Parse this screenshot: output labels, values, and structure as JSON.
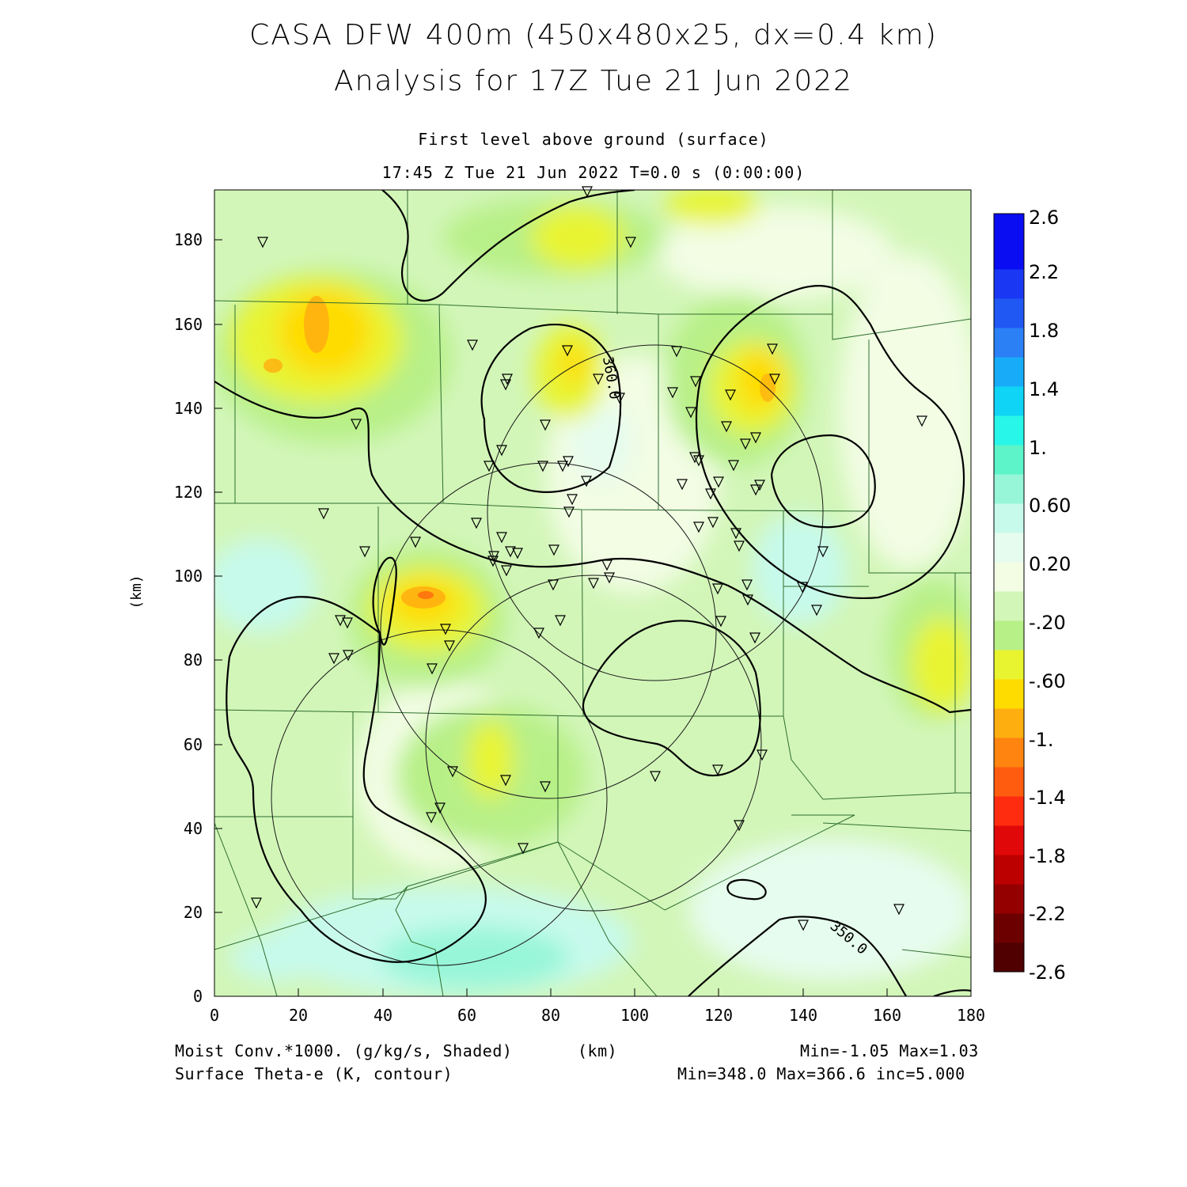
{
  "header": {
    "title_line1": "CASA DFW 400m (450x480x25, dx=0.4 km)",
    "title_line2": "Analysis for 17Z Tue 21 Jun 2022",
    "level": "First level above ground (surface)",
    "valid_time": "17:45 Z Tue 21 Jun 2022   T=0.0 s (0:00:00)"
  },
  "axes": {
    "x_label": "(km)",
    "y_label": "(km)",
    "x_ticks": [
      "0",
      "20",
      "40",
      "60",
      "80",
      "100",
      "120",
      "140",
      "160",
      "180"
    ],
    "y_ticks": [
      "0",
      "20",
      "40",
      "60",
      "80",
      "100",
      "120",
      "140",
      "160",
      "180"
    ],
    "x_range": [
      0,
      180
    ],
    "y_range": [
      0,
      192
    ]
  },
  "colorbar": {
    "labels": [
      "2.6",
      "2.2",
      "1.8",
      "1.4",
      "1.",
      "0.60",
      "0.20",
      "-.20",
      "-.60",
      "-1.",
      "-1.4",
      "-1.8",
      "-2.2",
      "-2.6"
    ],
    "colors": [
      "#0a0cf2",
      "#1a38f4",
      "#2058f4",
      "#2c80f6",
      "#18acf8",
      "#10d4f6",
      "#28f6e8",
      "#5cf4c8",
      "#98f6d8",
      "#c8faec",
      "#e6fcee",
      "#f2fde4",
      "#d2f6b8",
      "#b8f088",
      "#e8f430",
      "#ffdc00",
      "#ffae10",
      "#ff8410",
      "#ff5c10",
      "#ff2c10",
      "#e00808",
      "#bc0000",
      "#940000",
      "#6c0000",
      "#500000"
    ]
  },
  "contours": {
    "label_360": "360.0",
    "label_350": "350.0"
  },
  "footer": {
    "shaded_field": "Moist Conv.*1000. (g/kg/s, Shaded)",
    "x_unit": "(km)",
    "shaded_range": "Min=-1.05 Max=1.03",
    "contour_field": "Surface Theta-e (K, contour)",
    "contour_range": "Min=348.0 Max=366.6 inc=5.000"
  }
}
